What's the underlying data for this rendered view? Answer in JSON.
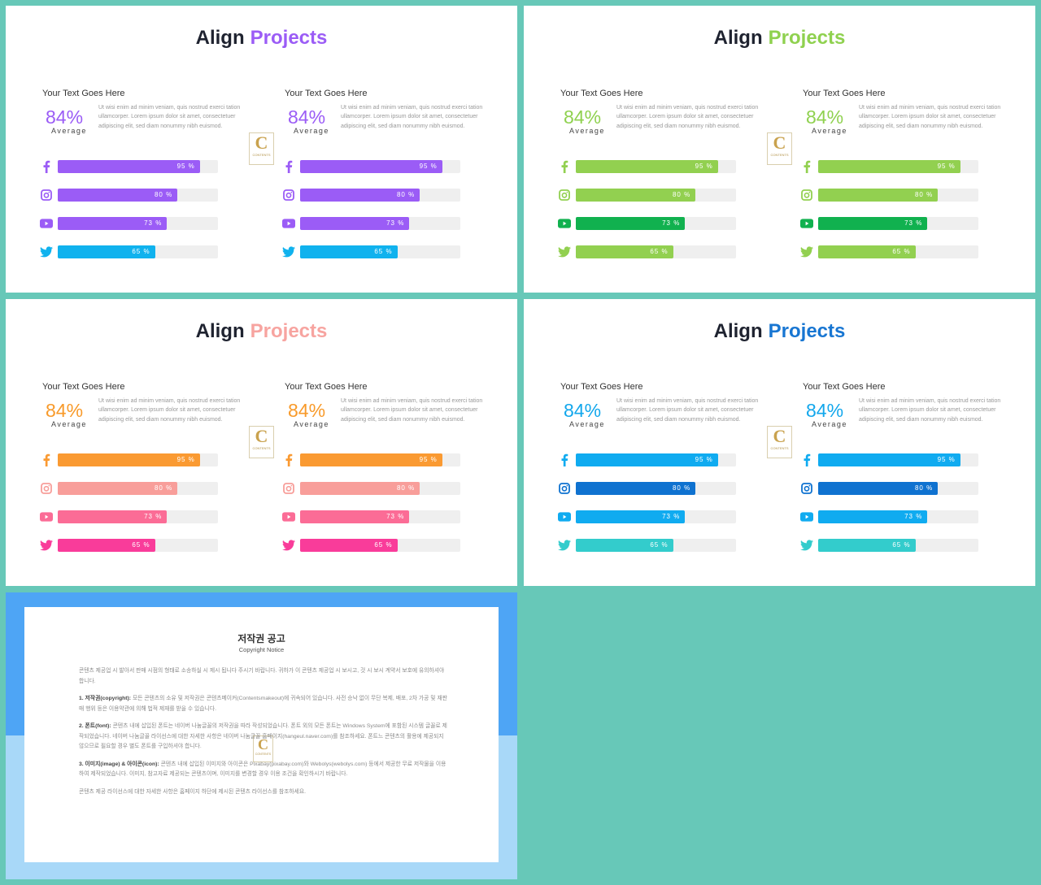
{
  "title_word": "Align",
  "title_highlight": "Projects",
  "subhead": "Your Text Goes Here",
  "percent": "84%",
  "average_label": "Average",
  "description": "Ut wisi enim ad minim veniam, quis nostrud exerci tation ullamcorper. Lorem ipsum dolor sit amet, consectetuer adipiscing elit, sed diam nonummy nibh euismod.",
  "logo_letter": "C",
  "logo_text": "CONTENTS",
  "rows": [
    {
      "icon": "facebook-icon",
      "value": 95,
      "label": "95 %"
    },
    {
      "icon": "instagram-icon",
      "value": 80,
      "label": "80 %"
    },
    {
      "icon": "youtube-icon",
      "value": 73,
      "label": "73 %"
    },
    {
      "icon": "twitter-icon",
      "value": 65,
      "label": "65 %"
    }
  ],
  "slides": [
    {
      "accent": "#9b5cf6",
      "percent_color": "#9b5cf6",
      "bar_colors": [
        "#9b5cf6",
        "#9b5cf6",
        "#9b5cf6",
        "#10b2ee"
      ],
      "icon_colors": [
        "#9b5cf6",
        "#9b5cf6",
        "#9b5cf6",
        "#10b2ee"
      ]
    },
    {
      "accent": "#8fd14f",
      "percent_color": "#8fd14f",
      "bar_colors": [
        "#92d050",
        "#92d050",
        "#11b14f",
        "#92d050"
      ],
      "icon_colors": [
        "#92d050",
        "#92d050",
        "#11b14f",
        "#92d050"
      ]
    },
    {
      "accent": "#f7a4a0",
      "percent_color": "#f89a2a",
      "bar_colors": [
        "#fa9a32",
        "#f89e9a",
        "#fb6c96",
        "#f93c9a"
      ],
      "icon_colors": [
        "#fa9a32",
        "#f89e9a",
        "#fb6c96",
        "#f93c9a"
      ]
    },
    {
      "accent": "#1876d2",
      "percent_color": "#12a7ec",
      "bar_colors": [
        "#10abf0",
        "#0f72d0",
        "#10abf0",
        "#33cccc"
      ],
      "icon_colors": [
        "#10abf0",
        "#0f72d0",
        "#10abf0",
        "#33cccc"
      ]
    }
  ],
  "notice": {
    "title": "저작권 공고",
    "subtitle": "Copyright Notice",
    "intro": "콘텐츠 제공업 시 발아서 판매 시점의 형태로 소송하실 시 제시 됩니다 주시기 바랍니다. 귀하가 이 콘텐츠 제공업 시 보시고, 것 시 보시 계약서 보호에 유의하셔야 합니다.",
    "p1_head": "1. 저작권(copyright):",
    "p1_body": "모든 콘텐츠의 소유 및 저작권은 콘텐츠메이커(Contentsmakeout)에 귀속되어 있습니다. 사전 승낙 없이 무단 복제, 배포, 2차 가공 및 재판매 행위 등은 이용약관에 의해 법적 제재를 받을 수 있습니다.",
    "p2_head": "2. 폰트(font):",
    "p2_body": "콘텐츠 내에 삽입된 폰트는 네이버 나눔글꼴의 저작권을 따라 작성되었습니다. 폰트 외의 모든 폰트는 Windows System에 포함된 시스템 글꼴로 제작되었습니다. 네이버 나눔글꼴 라이선스에 대한 자세한 사항은 네이버 나눔글꼴 홈페이지(hangeul.naver.com)를 참조하세요. 폰트느 콘텐츠의 활용에 제공되지 않으므로 필요할 경우 별도 폰트를 구입하셔야 합니다.",
    "p3_head": "3. 이미지(image) & 아이콘(icon):",
    "p3_body": "콘텐츠 내에 삽입된 이미지와 아이콘은 Pixabay(pixabay.com)와 Webolys(webolys.com) 등에서 제공한 무료 저작물을 이용하여 제작되었습니다. 이미지, 참고자료 제공되는 콘텐츠이며, 이미지를 변경할 경우 이용 조건을 확인하시기 바랍니다.",
    "outro": "콘텐츠 제공 라이선스에 대한 자세한 사항은 홈페이지 하단에 제시된 콘텐츠 라이선스를 참조하세요."
  }
}
